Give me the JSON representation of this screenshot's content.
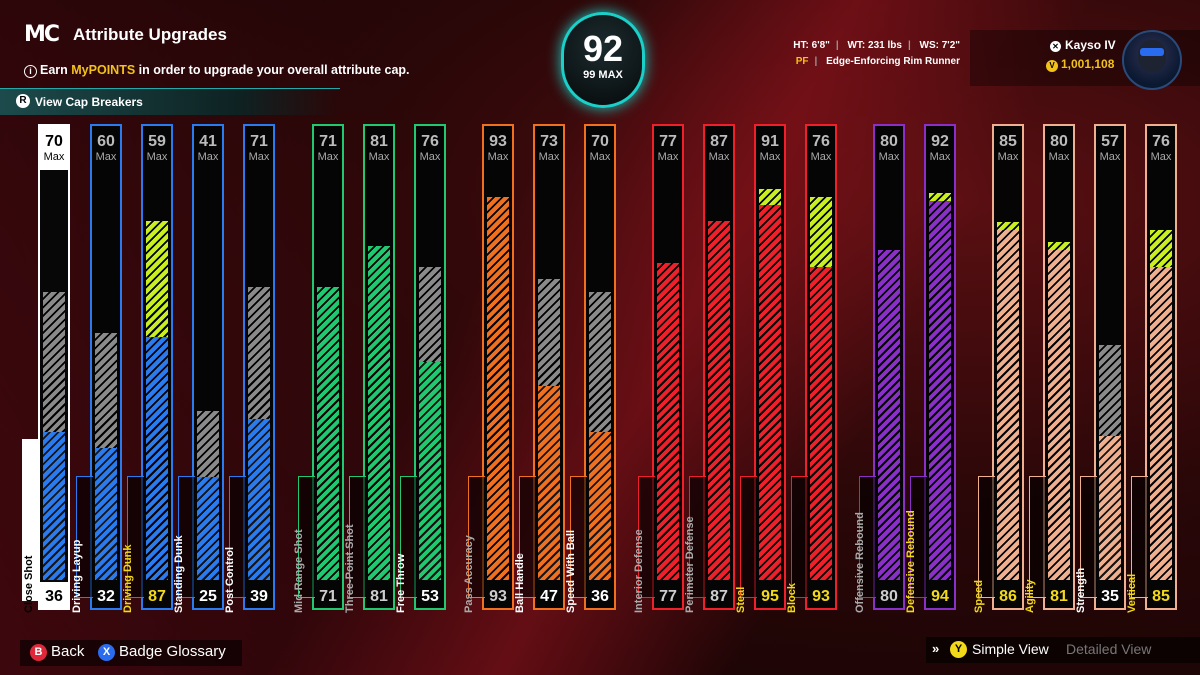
{
  "header": {
    "logo": "MC",
    "title": "Attribute Upgrades",
    "earn_prefix": "Earn ",
    "earn_highlight": "MyPOINTS",
    "earn_suffix": " in order to upgrade your overall attribute cap.",
    "cap_breakers": "View Cap Breakers"
  },
  "overall": {
    "value": "92",
    "max_label": "99 MAX"
  },
  "physicals": {
    "ht": "HT: 6'8\"",
    "wt": "WT: 231 lbs",
    "ws": "WS: 7'2\"",
    "position": "PF",
    "archetype": "Edge-Enforcing Rim Runner"
  },
  "player": {
    "gamertag": "Kayso IV",
    "vc": "1,001,108"
  },
  "max_label": "Max",
  "colors": {
    "white": "#ffffff",
    "blue": "#2a7bf0",
    "green": "#20c870",
    "orange": "#f07020",
    "red": "#f0202a",
    "purple": "#8a30c8",
    "peach": "#f0b090",
    "lime": "#c8f020",
    "gray": "#8a8a8a"
  },
  "attributes": [
    {
      "name": "Close Shot",
      "current": 36,
      "cap": 70,
      "max": 70,
      "group": "white"
    },
    {
      "name": "Driving Layup",
      "current": 32,
      "cap": 60,
      "max": 60,
      "group": "blue"
    },
    {
      "name": "Driving Dunk",
      "current": 87,
      "cap": 59,
      "max": 59,
      "group": "blue",
      "upgrade": true
    },
    {
      "name": "Standing Dunk",
      "current": 25,
      "cap": 41,
      "max": 41,
      "group": "blue"
    },
    {
      "name": "Post Control",
      "current": 39,
      "cap": 71,
      "max": 71,
      "group": "blue"
    },
    {
      "name": "Mid-Range Shot",
      "current": 71,
      "cap": 71,
      "max": 71,
      "group": "green"
    },
    {
      "name": "Three-Point Shot",
      "current": 81,
      "cap": 81,
      "max": 81,
      "group": "green"
    },
    {
      "name": "Free Throw",
      "current": 53,
      "cap": 76,
      "max": 76,
      "group": "green"
    },
    {
      "name": "Pass Accuracy",
      "current": 93,
      "cap": 93,
      "max": 93,
      "group": "orange"
    },
    {
      "name": "Ball Handle",
      "current": 47,
      "cap": 73,
      "max": 73,
      "group": "orange"
    },
    {
      "name": "Speed With Ball",
      "current": 36,
      "cap": 70,
      "max": 70,
      "group": "orange"
    },
    {
      "name": "Interior Defense",
      "current": 77,
      "cap": 77,
      "max": 77,
      "group": "red"
    },
    {
      "name": "Perimeter Defense",
      "current": 87,
      "cap": 87,
      "max": 87,
      "group": "red"
    },
    {
      "name": "Steal",
      "current": 95,
      "cap": 91,
      "max": 91,
      "group": "red",
      "upgrade": true
    },
    {
      "name": "Block",
      "current": 93,
      "cap": 76,
      "max": 76,
      "group": "red",
      "upgrade": true
    },
    {
      "name": "Offensive Rebound",
      "current": 80,
      "cap": 80,
      "max": 80,
      "group": "purple"
    },
    {
      "name": "Defensive Rebound",
      "current": 94,
      "cap": 92,
      "max": 92,
      "group": "purple",
      "upgrade": true
    },
    {
      "name": "Speed",
      "current": 86,
      "cap": 85,
      "max": 85,
      "group": "peach",
      "upgrade": true
    },
    {
      "name": "Agility",
      "current": 81,
      "cap": 80,
      "max": 80,
      "group": "peach",
      "upgrade": true
    },
    {
      "name": "Strength",
      "current": 35,
      "cap": 57,
      "max": 57,
      "group": "peach"
    },
    {
      "name": "Vertical",
      "current": 85,
      "cap": 76,
      "max": 76,
      "group": "peach",
      "upgrade": true
    }
  ],
  "footer": {
    "back_key": "B",
    "back": "Back",
    "glossary_key": "X",
    "glossary": "Badge Glossary",
    "view_key": "Y",
    "simple_view": "Simple View",
    "detailed_view": "Detailed View"
  }
}
